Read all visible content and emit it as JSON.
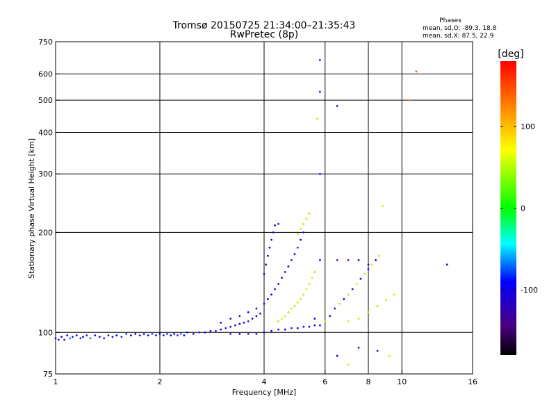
{
  "chart_data": {
    "type": "scatter",
    "title": "Tromsø 20150725 21:34:00–21:35:43",
    "subtitle": "RwPretec (8p)",
    "xlabel": "Frequency [MHz]",
    "ylabel": "Stationary phase Virtual Height [km]",
    "x_scale": "log",
    "y_scale": "log",
    "xlim": [
      1,
      16
    ],
    "ylim": [
      75,
      750
    ],
    "x_ticks": [
      1,
      2,
      4,
      6,
      8,
      10,
      16
    ],
    "y_ticks": [
      75,
      100,
      200,
      300,
      400,
      500,
      600,
      750
    ],
    "x_grid": [
      2,
      4,
      6,
      8,
      10
    ],
    "y_grid": [
      100,
      200,
      300,
      400,
      500,
      600
    ],
    "grid": true,
    "phases_box": {
      "title": "Phases",
      "line_o": "mean, sd,O: -89.3, 18.8",
      "line_x": "mean, sd,X:  87.5, 22.9"
    },
    "colorbar": {
      "label": "[deg]",
      "ticks": [
        100,
        0,
        -100
      ],
      "range": [
        -180,
        180
      ]
    },
    "series": [
      {
        "points": [
          [
            1.0,
            96,
            -100
          ],
          [
            1.02,
            95,
            -120
          ],
          [
            1.04,
            97,
            -110
          ],
          [
            1.06,
            95,
            -130
          ],
          [
            1.08,
            98,
            -100
          ],
          [
            1.1,
            96,
            -60
          ],
          [
            1.12,
            97,
            -120
          ],
          [
            1.15,
            98,
            -110
          ],
          [
            1.18,
            96,
            -90
          ],
          [
            1.2,
            97,
            -100
          ],
          [
            1.23,
            98,
            -130
          ],
          [
            1.26,
            96,
            -60
          ],
          [
            1.3,
            98,
            -110
          ],
          [
            1.34,
            97,
            -100
          ],
          [
            1.38,
            96,
            -120
          ],
          [
            1.42,
            98,
            -90
          ],
          [
            1.46,
            97,
            -110
          ],
          [
            1.5,
            98,
            -100
          ],
          [
            1.55,
            97,
            -130
          ],
          [
            1.6,
            99,
            -80
          ],
          [
            1.65,
            98,
            -110
          ],
          [
            1.7,
            99,
            -100
          ],
          [
            1.75,
            98,
            -120
          ],
          [
            1.8,
            99,
            -90
          ],
          [
            1.85,
            98,
            -110
          ],
          [
            1.9,
            99,
            -70
          ],
          [
            1.95,
            98,
            -110
          ],
          [
            2.0,
            99,
            -100
          ],
          [
            2.05,
            98,
            -120
          ],
          [
            2.1,
            99,
            -80
          ],
          [
            2.15,
            98,
            -110
          ],
          [
            2.2,
            99,
            -100
          ],
          [
            2.25,
            98,
            -130
          ],
          [
            2.3,
            99,
            -60
          ],
          [
            2.35,
            98,
            -110
          ],
          [
            2.4,
            100,
            -100
          ],
          [
            2.5,
            99,
            -120
          ],
          [
            2.6,
            100,
            -90
          ],
          [
            2.7,
            100,
            -110
          ],
          [
            2.8,
            101,
            -100
          ],
          [
            2.9,
            101,
            -130
          ],
          [
            3.0,
            102,
            -110
          ],
          [
            3.1,
            103,
            -90
          ],
          [
            3.2,
            104,
            -110
          ],
          [
            3.3,
            105,
            -120
          ],
          [
            3.4,
            106,
            -100
          ],
          [
            3.5,
            107,
            -110
          ],
          [
            3.6,
            108,
            -130
          ],
          [
            3.7,
            110,
            -100
          ],
          [
            3.8,
            112,
            -110
          ],
          [
            3.9,
            114,
            -120
          ],
          [
            3.2,
            99,
            -120
          ],
          [
            3.4,
            99,
            -110
          ],
          [
            3.6,
            99,
            -130
          ],
          [
            3.8,
            99,
            -120
          ],
          [
            4.0,
            100,
            -110
          ],
          [
            4.2,
            101,
            -100
          ],
          [
            4.4,
            102,
            -120
          ],
          [
            4.6,
            102,
            -110
          ],
          [
            4.8,
            103,
            -130
          ],
          [
            5.0,
            103,
            -100
          ],
          [
            5.2,
            104,
            -120
          ],
          [
            5.4,
            104,
            -110
          ],
          [
            5.6,
            105,
            -120
          ],
          [
            5.8,
            105,
            -110
          ],
          [
            3.0,
            107,
            -110
          ],
          [
            3.2,
            110,
            -110
          ],
          [
            3.4,
            112,
            -120
          ],
          [
            3.6,
            115,
            -100
          ],
          [
            3.8,
            118,
            -110
          ],
          [
            4.0,
            122,
            -120
          ],
          [
            4.1,
            126,
            -100
          ],
          [
            4.2,
            130,
            -110
          ],
          [
            4.3,
            135,
            -120
          ],
          [
            4.4,
            140,
            -110
          ],
          [
            4.5,
            146,
            -100
          ],
          [
            4.6,
            152,
            -120
          ],
          [
            4.7,
            158,
            -110
          ],
          [
            4.8,
            165,
            -130
          ],
          [
            4.9,
            172,
            -110
          ],
          [
            5.0,
            180,
            -120
          ],
          [
            5.1,
            190,
            -100
          ],
          [
            5.2,
            200,
            -110
          ],
          [
            4.0,
            150,
            -110
          ],
          [
            4.05,
            160,
            -120
          ],
          [
            4.1,
            170,
            -100
          ],
          [
            4.15,
            180,
            -110
          ],
          [
            4.2,
            190,
            -120
          ],
          [
            4.25,
            200,
            -110
          ],
          [
            4.3,
            210,
            -100
          ],
          [
            4.4,
            212,
            -120
          ],
          [
            4.4,
            108,
            100
          ],
          [
            4.5,
            110,
            110
          ],
          [
            4.6,
            112,
            100
          ],
          [
            4.7,
            115,
            90
          ],
          [
            4.8,
            118,
            110
          ],
          [
            4.9,
            120,
            100
          ],
          [
            5.0,
            123,
            95
          ],
          [
            5.1,
            126,
            110
          ],
          [
            5.2,
            130,
            100
          ],
          [
            5.3,
            135,
            105
          ],
          [
            5.4,
            140,
            100
          ],
          [
            5.5,
            146,
            110
          ],
          [
            5.6,
            152,
            100
          ],
          [
            5.0,
            198,
            100
          ],
          [
            5.1,
            205,
            110
          ],
          [
            5.2,
            212,
            100
          ],
          [
            5.3,
            220,
            105
          ],
          [
            5.4,
            228,
            90
          ],
          [
            5.6,
            110,
            -110
          ],
          [
            5.8,
            165,
            -120
          ],
          [
            5.8,
            300,
            -110
          ],
          [
            5.8,
            530,
            -120
          ],
          [
            5.8,
            660,
            -110
          ],
          [
            5.7,
            440,
            110
          ],
          [
            6.0,
            108,
            100
          ],
          [
            6.2,
            112,
            -110
          ],
          [
            6.4,
            118,
            -120
          ],
          [
            6.6,
            122,
            100
          ],
          [
            6.8,
            126,
            -110
          ],
          [
            7.0,
            130,
            100
          ],
          [
            7.2,
            135,
            -120
          ],
          [
            7.4,
            140,
            110
          ],
          [
            7.6,
            145,
            -110
          ],
          [
            7.8,
            150,
            100
          ],
          [
            8.0,
            155,
            -120
          ],
          [
            8.2,
            160,
            110
          ],
          [
            8.4,
            165,
            -110
          ],
          [
            8.6,
            170,
            100
          ],
          [
            6.5,
            165,
            -140
          ],
          [
            7.0,
            165,
            -140
          ],
          [
            7.5,
            165,
            -110
          ],
          [
            8.0,
            160,
            -120
          ],
          [
            7.0,
            108,
            110
          ],
          [
            7.5,
            110,
            100
          ],
          [
            8.0,
            115,
            105
          ],
          [
            8.5,
            120,
            90
          ],
          [
            9.0,
            125,
            100
          ],
          [
            9.5,
            130,
            110
          ],
          [
            6.5,
            85,
            -110
          ],
          [
            7.0,
            80,
            110
          ],
          [
            7.5,
            90,
            -110
          ],
          [
            8.5,
            88,
            -120
          ],
          [
            9.2,
            85,
            110
          ],
          [
            8.8,
            240,
            110
          ],
          [
            10.5,
            500,
            140
          ],
          [
            11.0,
            610,
            150
          ],
          [
            6.5,
            480,
            -120
          ],
          [
            13.5,
            160,
            -110
          ]
        ]
      }
    ]
  }
}
